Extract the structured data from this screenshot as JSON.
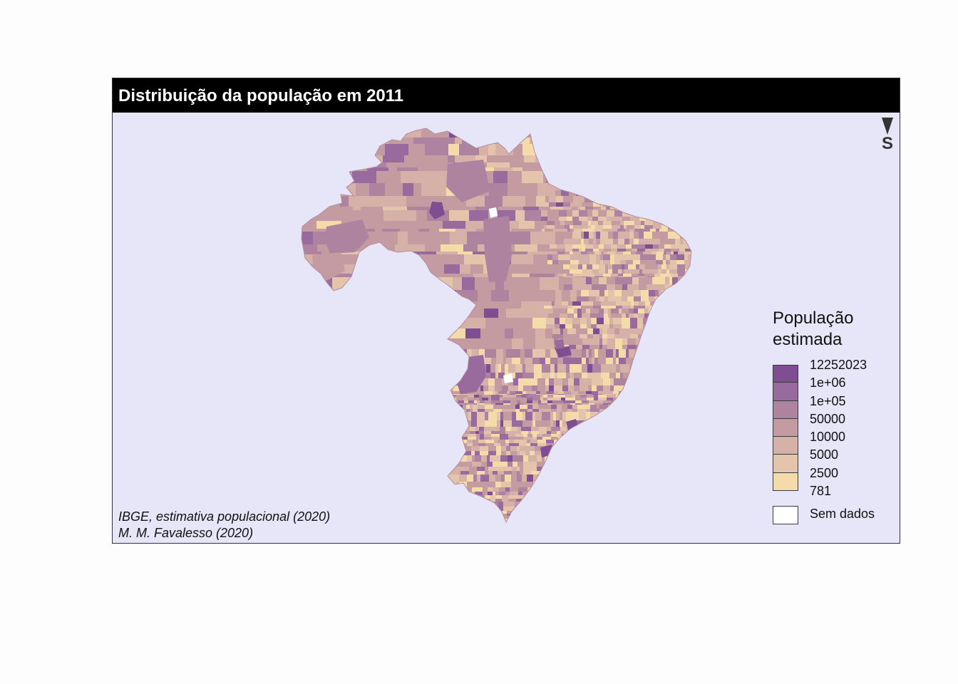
{
  "title": "Distribuição da população em 2011",
  "compass": {
    "label": "S",
    "icon": "north-arrow-pointing-down-icon"
  },
  "legend": {
    "title_line1": "População",
    "title_line2": "estimada",
    "items": [
      {
        "label": "12252023",
        "color": "#7f4d91"
      },
      {
        "label": "1e+06",
        "color": "#986a9e"
      },
      {
        "label": "1e+05",
        "color": "#ae839f"
      },
      {
        "label": "50000",
        "color": "#c39ba1"
      },
      {
        "label": "10000",
        "color": "#d5b1a7"
      },
      {
        "label": "5000",
        "color": "#e4c4aa"
      },
      {
        "label": "2500",
        "color": "#f6dbaa"
      }
    ],
    "bottom_label": "781",
    "no_data": {
      "label": "Sem dados",
      "color": "#ffffff"
    }
  },
  "credits": {
    "line1": "IBGE, estimativa populacional (2020)",
    "line2": "M. M. Favalesso (2020)"
  },
  "colors": {
    "background": "#e6e6f8",
    "title_bar": "#000000",
    "title_text": "#ffffff",
    "map_base": "#c39ba1"
  }
}
